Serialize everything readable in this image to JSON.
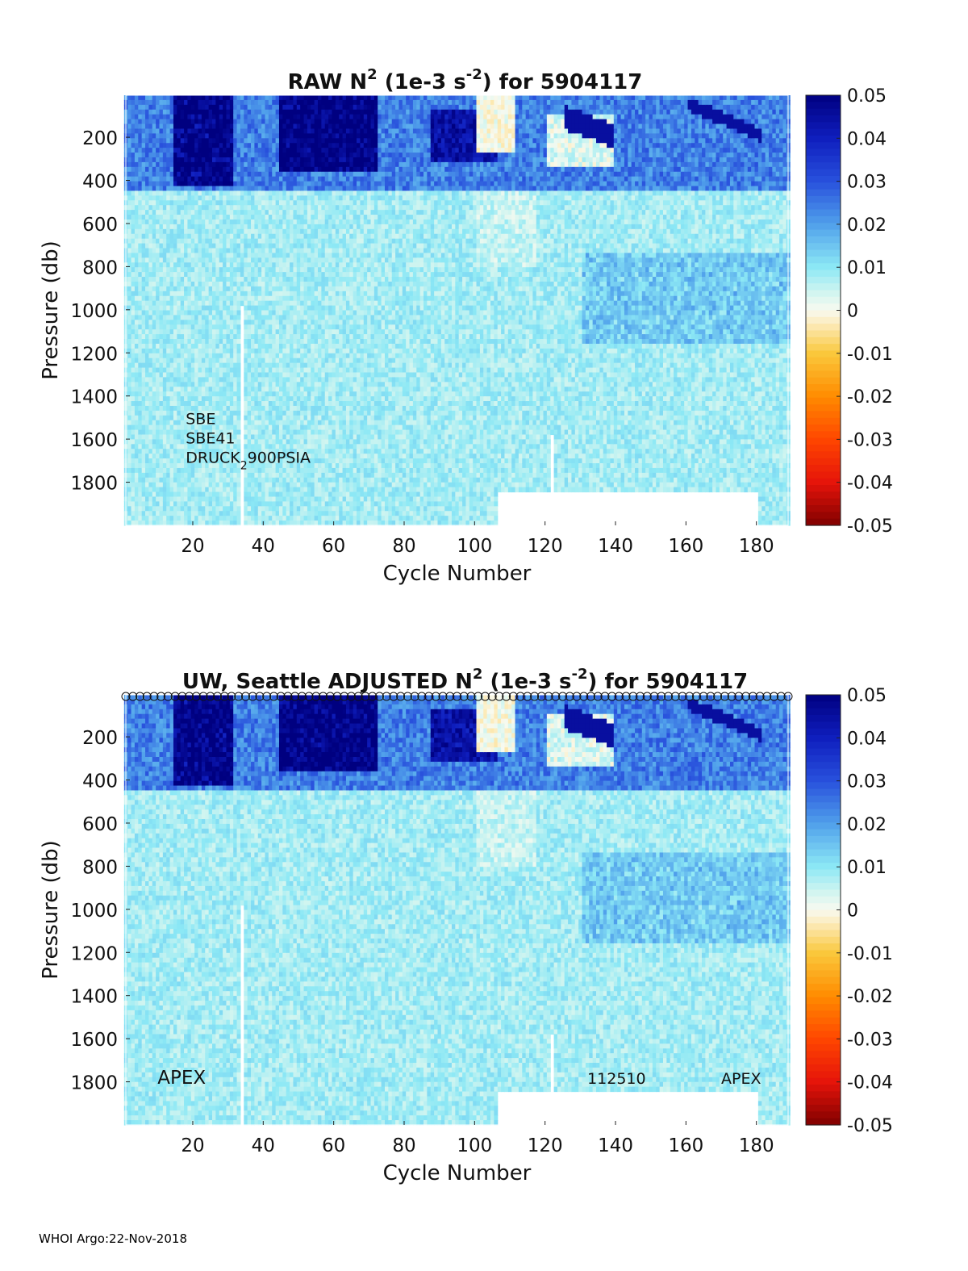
{
  "footer": "WHOI Argo:22-Nov-2018",
  "chart_data": [
    {
      "type": "heatmap",
      "title": {
        "prefix": "RAW N",
        "sup1": "2",
        "mid": " (1e-3 s",
        "sup2": "-2",
        "suffix": ") for 5904117"
      },
      "xlabel": "Cycle Number",
      "ylabel": "Pressure (db)",
      "xlim": [
        1,
        189
      ],
      "ylim": [
        2000,
        5
      ],
      "x_ticks": [
        20,
        40,
        60,
        80,
        100,
        120,
        140,
        160,
        180
      ],
      "y_ticks": [
        200,
        400,
        600,
        800,
        1000,
        1200,
        1400,
        1600,
        1800
      ],
      "colorbar": {
        "min": -0.05,
        "max": 0.05,
        "ticks": [
          0.05,
          0.04,
          0.03,
          0.02,
          0.01,
          0,
          -0.01,
          -0.02,
          -0.03,
          -0.04,
          -0.05
        ],
        "colormap": "jet-like (dark red - orange - yellow - white at 0 - cyan - blue - dark blue)"
      },
      "annotations": [
        {
          "text": "SBE",
          "x": 18,
          "pressure": 1530
        },
        {
          "text": "SBE41",
          "x": 18,
          "pressure": 1620
        },
        {
          "text": "DRUCK",
          "sub": "2",
          "text_after": "900PSIA",
          "x": 18,
          "pressure": 1710
        }
      ],
      "features": {
        "upper_layer_pressure": [
          5,
          430
        ],
        "upper_layer_values": "mostly 0.02 to 0.05, strong near cycles 15-30, 45-80, 90-105; near 0 to slightly negative around cycles 100-110 and 120-135",
        "deep_values": "about 0.005 to 0.015 below 450 db",
        "data_gaps": [
          {
            "cycle": 34,
            "pressure_from": 960,
            "pressure_to": 2000
          },
          {
            "cycle": 122,
            "pressure_from": 1560,
            "pressure_to": 2000
          },
          {
            "cycles": [
              107,
              180
            ],
            "pressure_from": 1840,
            "pressure_to": 2000
          }
        ]
      }
    },
    {
      "type": "heatmap",
      "title": {
        "prefix": "UW, Seattle  ADJUSTED N",
        "sup1": "2",
        "mid": " (1e-3 s",
        "sup2": "-2",
        "suffix": ") for 5904117"
      },
      "xlabel": "Cycle Number",
      "ylabel": "Pressure (db)",
      "xlim": [
        1,
        189
      ],
      "ylim": [
        2000,
        5
      ],
      "x_ticks": [
        20,
        40,
        60,
        80,
        100,
        120,
        140,
        160,
        180
      ],
      "y_ticks": [
        200,
        400,
        600,
        800,
        1000,
        1200,
        1400,
        1600,
        1800
      ],
      "colorbar": {
        "min": -0.05,
        "max": 0.05,
        "ticks": [
          0.05,
          0.04,
          0.03,
          0.02,
          0.01,
          0,
          -0.01,
          -0.02,
          -0.03,
          -0.04,
          -0.05
        ]
      },
      "qc_markers": {
        "symbol": "open circle",
        "row": "top of plot",
        "cycles": "every cycle 1-189"
      },
      "annotations": [
        {
          "text": "APEX",
          "x": 10,
          "pressure": 1810
        },
        {
          "text": "112510",
          "x": 132,
          "pressure": 1810
        },
        {
          "text": "APEX",
          "x": 170,
          "pressure": 1810
        }
      ],
      "features": {
        "upper_layer_pressure": [
          5,
          430
        ],
        "upper_layer_values": "mostly 0.02 to 0.05, strong near cycles 15-30, 45-80, 90-105",
        "deep_values": "about 0.005 to 0.015 below 450 db",
        "data_gaps": [
          {
            "cycle": 34,
            "pressure_from": 960,
            "pressure_to": 2000
          },
          {
            "cycle": 122,
            "pressure_from": 1560,
            "pressure_to": 2000
          },
          {
            "cycles": [
              107,
              180
            ],
            "pressure_from": 1840,
            "pressure_to": 2000
          }
        ]
      }
    }
  ]
}
